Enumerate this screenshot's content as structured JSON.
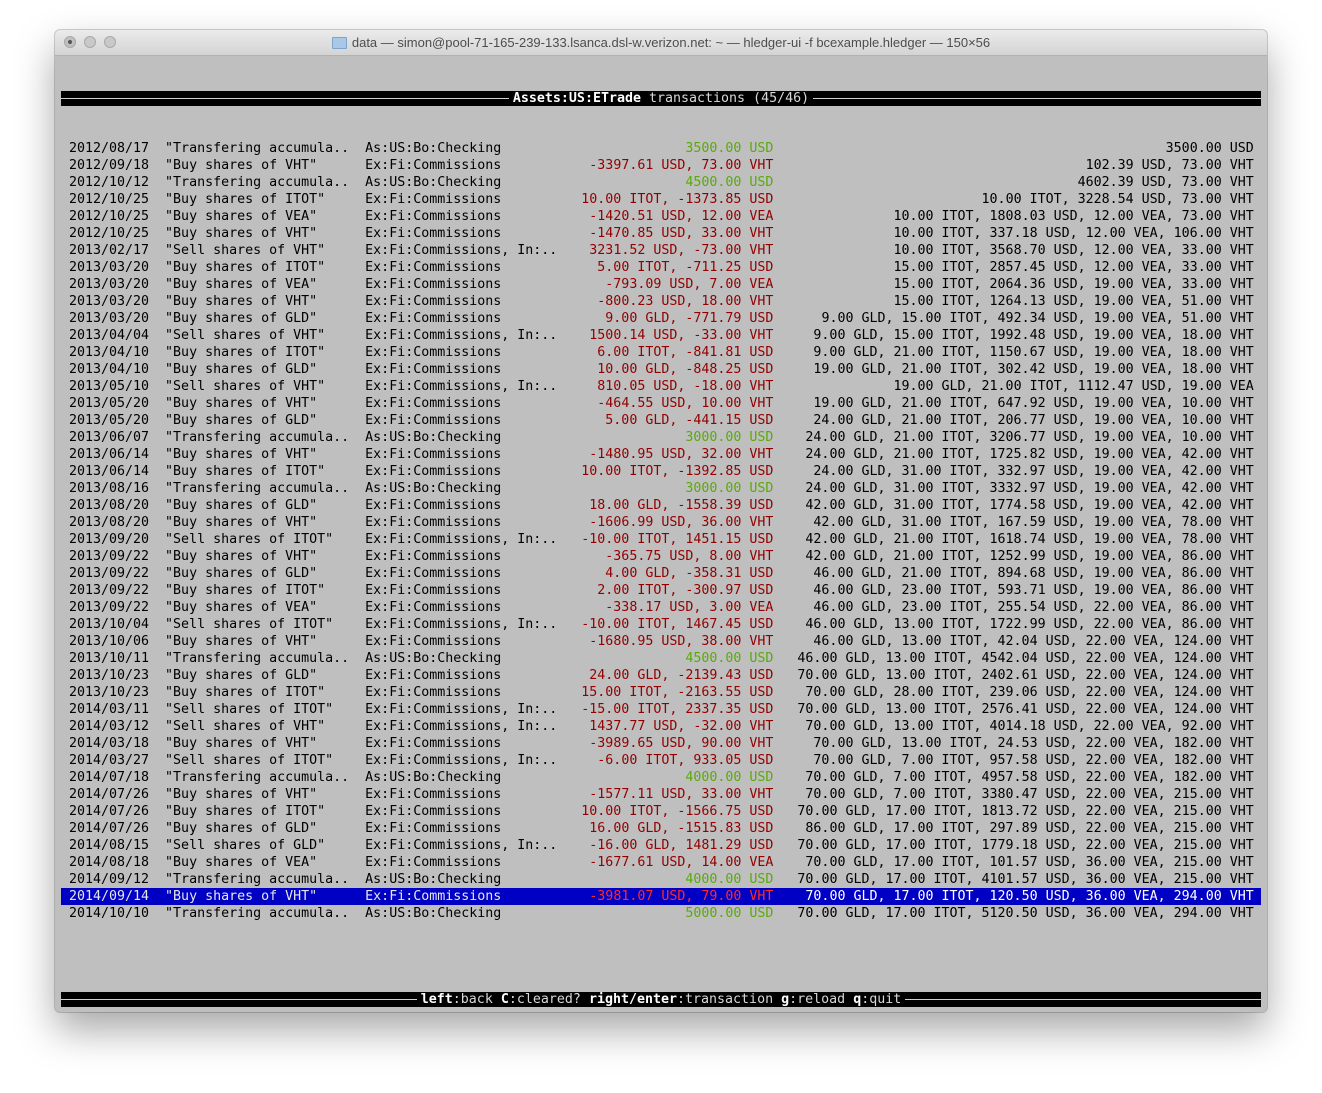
{
  "window": {
    "title": "data — simon@pool-71-165-239-133.lsanca.dsl-w.verizon.net: ~ — hledger-ui -f bcexample.hledger — 150×56",
    "icon": "folder-icon"
  },
  "header": {
    "account": "Assets:US:ETrade",
    "suffix": " transactions (45/46)"
  },
  "colors": {
    "positive": "#5aaa0a",
    "negative": "#920000",
    "selection": "#0000c4",
    "background": "#bfbfbf"
  },
  "selected_index": 44,
  "rows": [
    {
      "date": "2012/08/17",
      "desc": "\"Transfering accumula..",
      "account": "As:US:Bo:Checking",
      "amount": "3500.00 USD",
      "positive": true,
      "balance": "3500.00 USD"
    },
    {
      "date": "2012/09/18",
      "desc": "\"Buy shares of VHT\"",
      "account": "Ex:Fi:Commissions",
      "amount": "-3397.61 USD, 73.00 VHT",
      "positive": false,
      "balance": "102.39 USD, 73.00 VHT"
    },
    {
      "date": "2012/10/12",
      "desc": "\"Transfering accumula..",
      "account": "As:US:Bo:Checking",
      "amount": "4500.00 USD",
      "positive": true,
      "balance": "4602.39 USD, 73.00 VHT"
    },
    {
      "date": "2012/10/25",
      "desc": "\"Buy shares of ITOT\"",
      "account": "Ex:Fi:Commissions",
      "amount": "10.00 ITOT, -1373.85 USD",
      "positive": false,
      "balance": "10.00 ITOT, 3228.54 USD, 73.00 VHT"
    },
    {
      "date": "2012/10/25",
      "desc": "\"Buy shares of VEA\"",
      "account": "Ex:Fi:Commissions",
      "amount": "-1420.51 USD, 12.00 VEA",
      "positive": false,
      "balance": "10.00 ITOT, 1808.03 USD, 12.00 VEA, 73.00 VHT"
    },
    {
      "date": "2012/10/25",
      "desc": "\"Buy shares of VHT\"",
      "account": "Ex:Fi:Commissions",
      "amount": "-1470.85 USD, 33.00 VHT",
      "positive": false,
      "balance": "10.00 ITOT, 337.18 USD, 12.00 VEA, 106.00 VHT"
    },
    {
      "date": "2013/02/17",
      "desc": "\"Sell shares of VHT\"",
      "account": "Ex:Fi:Commissions, In:..",
      "amount": "3231.52 USD, -73.00 VHT",
      "positive": false,
      "balance": "10.00 ITOT, 3568.70 USD, 12.00 VEA, 33.00 VHT"
    },
    {
      "date": "2013/03/20",
      "desc": "\"Buy shares of ITOT\"",
      "account": "Ex:Fi:Commissions",
      "amount": "5.00 ITOT, -711.25 USD",
      "positive": false,
      "balance": "15.00 ITOT, 2857.45 USD, 12.00 VEA, 33.00 VHT"
    },
    {
      "date": "2013/03/20",
      "desc": "\"Buy shares of VEA\"",
      "account": "Ex:Fi:Commissions",
      "amount": "-793.09 USD, 7.00 VEA",
      "positive": false,
      "balance": "15.00 ITOT, 2064.36 USD, 19.00 VEA, 33.00 VHT"
    },
    {
      "date": "2013/03/20",
      "desc": "\"Buy shares of VHT\"",
      "account": "Ex:Fi:Commissions",
      "amount": "-800.23 USD, 18.00 VHT",
      "positive": false,
      "balance": "15.00 ITOT, 1264.13 USD, 19.00 VEA, 51.00 VHT"
    },
    {
      "date": "2013/03/20",
      "desc": "\"Buy shares of GLD\"",
      "account": "Ex:Fi:Commissions",
      "amount": "9.00 GLD, -771.79 USD",
      "positive": false,
      "balance": "9.00 GLD, 15.00 ITOT, 492.34 USD, 19.00 VEA, 51.00 VHT"
    },
    {
      "date": "2013/04/04",
      "desc": "\"Sell shares of VHT\"",
      "account": "Ex:Fi:Commissions, In:..",
      "amount": "1500.14 USD, -33.00 VHT",
      "positive": false,
      "balance": "9.00 GLD, 15.00 ITOT, 1992.48 USD, 19.00 VEA, 18.00 VHT"
    },
    {
      "date": "2013/04/10",
      "desc": "\"Buy shares of ITOT\"",
      "account": "Ex:Fi:Commissions",
      "amount": "6.00 ITOT, -841.81 USD",
      "positive": false,
      "balance": "9.00 GLD, 21.00 ITOT, 1150.67 USD, 19.00 VEA, 18.00 VHT"
    },
    {
      "date": "2013/04/10",
      "desc": "\"Buy shares of GLD\"",
      "account": "Ex:Fi:Commissions",
      "amount": "10.00 GLD, -848.25 USD",
      "positive": false,
      "balance": "19.00 GLD, 21.00 ITOT, 302.42 USD, 19.00 VEA, 18.00 VHT"
    },
    {
      "date": "2013/05/10",
      "desc": "\"Sell shares of VHT\"",
      "account": "Ex:Fi:Commissions, In:..",
      "amount": "810.05 USD, -18.00 VHT",
      "positive": false,
      "balance": "19.00 GLD, 21.00 ITOT, 1112.47 USD, 19.00 VEA"
    },
    {
      "date": "2013/05/20",
      "desc": "\"Buy shares of VHT\"",
      "account": "Ex:Fi:Commissions",
      "amount": "-464.55 USD, 10.00 VHT",
      "positive": false,
      "balance": "19.00 GLD, 21.00 ITOT, 647.92 USD, 19.00 VEA, 10.00 VHT"
    },
    {
      "date": "2013/05/20",
      "desc": "\"Buy shares of GLD\"",
      "account": "Ex:Fi:Commissions",
      "amount": "5.00 GLD, -441.15 USD",
      "positive": false,
      "balance": "24.00 GLD, 21.00 ITOT, 206.77 USD, 19.00 VEA, 10.00 VHT"
    },
    {
      "date": "2013/06/07",
      "desc": "\"Transfering accumula..",
      "account": "As:US:Bo:Checking",
      "amount": "3000.00 USD",
      "positive": true,
      "balance": "24.00 GLD, 21.00 ITOT, 3206.77 USD, 19.00 VEA, 10.00 VHT"
    },
    {
      "date": "2013/06/14",
      "desc": "\"Buy shares of VHT\"",
      "account": "Ex:Fi:Commissions",
      "amount": "-1480.95 USD, 32.00 VHT",
      "positive": false,
      "balance": "24.00 GLD, 21.00 ITOT, 1725.82 USD, 19.00 VEA, 42.00 VHT"
    },
    {
      "date": "2013/06/14",
      "desc": "\"Buy shares of ITOT\"",
      "account": "Ex:Fi:Commissions",
      "amount": "10.00 ITOT, -1392.85 USD",
      "positive": false,
      "balance": "24.00 GLD, 31.00 ITOT, 332.97 USD, 19.00 VEA, 42.00 VHT"
    },
    {
      "date": "2013/08/16",
      "desc": "\"Transfering accumula..",
      "account": "As:US:Bo:Checking",
      "amount": "3000.00 USD",
      "positive": true,
      "balance": "24.00 GLD, 31.00 ITOT, 3332.97 USD, 19.00 VEA, 42.00 VHT"
    },
    {
      "date": "2013/08/20",
      "desc": "\"Buy shares of GLD\"",
      "account": "Ex:Fi:Commissions",
      "amount": "18.00 GLD, -1558.39 USD",
      "positive": false,
      "balance": "42.00 GLD, 31.00 ITOT, 1774.58 USD, 19.00 VEA, 42.00 VHT"
    },
    {
      "date": "2013/08/20",
      "desc": "\"Buy shares of VHT\"",
      "account": "Ex:Fi:Commissions",
      "amount": "-1606.99 USD, 36.00 VHT",
      "positive": false,
      "balance": "42.00 GLD, 31.00 ITOT, 167.59 USD, 19.00 VEA, 78.00 VHT"
    },
    {
      "date": "2013/09/20",
      "desc": "\"Sell shares of ITOT\"",
      "account": "Ex:Fi:Commissions, In:..",
      "amount": "-10.00 ITOT, 1451.15 USD",
      "positive": false,
      "balance": "42.00 GLD, 21.00 ITOT, 1618.74 USD, 19.00 VEA, 78.00 VHT"
    },
    {
      "date": "2013/09/22",
      "desc": "\"Buy shares of VHT\"",
      "account": "Ex:Fi:Commissions",
      "amount": "-365.75 USD, 8.00 VHT",
      "positive": false,
      "balance": "42.00 GLD, 21.00 ITOT, 1252.99 USD, 19.00 VEA, 86.00 VHT"
    },
    {
      "date": "2013/09/22",
      "desc": "\"Buy shares of GLD\"",
      "account": "Ex:Fi:Commissions",
      "amount": "4.00 GLD, -358.31 USD",
      "positive": false,
      "balance": "46.00 GLD, 21.00 ITOT, 894.68 USD, 19.00 VEA, 86.00 VHT"
    },
    {
      "date": "2013/09/22",
      "desc": "\"Buy shares of ITOT\"",
      "account": "Ex:Fi:Commissions",
      "amount": "2.00 ITOT, -300.97 USD",
      "positive": false,
      "balance": "46.00 GLD, 23.00 ITOT, 593.71 USD, 19.00 VEA, 86.00 VHT"
    },
    {
      "date": "2013/09/22",
      "desc": "\"Buy shares of VEA\"",
      "account": "Ex:Fi:Commissions",
      "amount": "-338.17 USD, 3.00 VEA",
      "positive": false,
      "balance": "46.00 GLD, 23.00 ITOT, 255.54 USD, 22.00 VEA, 86.00 VHT"
    },
    {
      "date": "2013/10/04",
      "desc": "\"Sell shares of ITOT\"",
      "account": "Ex:Fi:Commissions, In:..",
      "amount": "-10.00 ITOT, 1467.45 USD",
      "positive": false,
      "balance": "46.00 GLD, 13.00 ITOT, 1722.99 USD, 22.00 VEA, 86.00 VHT"
    },
    {
      "date": "2013/10/06",
      "desc": "\"Buy shares of VHT\"",
      "account": "Ex:Fi:Commissions",
      "amount": "-1680.95 USD, 38.00 VHT",
      "positive": false,
      "balance": "46.00 GLD, 13.00 ITOT, 42.04 USD, 22.00 VEA, 124.00 VHT"
    },
    {
      "date": "2013/10/11",
      "desc": "\"Transfering accumula..",
      "account": "As:US:Bo:Checking",
      "amount": "4500.00 USD",
      "positive": true,
      "balance": "46.00 GLD, 13.00 ITOT, 4542.04 USD, 22.00 VEA, 124.00 VHT"
    },
    {
      "date": "2013/10/23",
      "desc": "\"Buy shares of GLD\"",
      "account": "Ex:Fi:Commissions",
      "amount": "24.00 GLD, -2139.43 USD",
      "positive": false,
      "balance": "70.00 GLD, 13.00 ITOT, 2402.61 USD, 22.00 VEA, 124.00 VHT"
    },
    {
      "date": "2013/10/23",
      "desc": "\"Buy shares of ITOT\"",
      "account": "Ex:Fi:Commissions",
      "amount": "15.00 ITOT, -2163.55 USD",
      "positive": false,
      "balance": "70.00 GLD, 28.00 ITOT, 239.06 USD, 22.00 VEA, 124.00 VHT"
    },
    {
      "date": "2014/03/11",
      "desc": "\"Sell shares of ITOT\"",
      "account": "Ex:Fi:Commissions, In:..",
      "amount": "-15.00 ITOT, 2337.35 USD",
      "positive": false,
      "balance": "70.00 GLD, 13.00 ITOT, 2576.41 USD, 22.00 VEA, 124.00 VHT"
    },
    {
      "date": "2014/03/12",
      "desc": "\"Sell shares of VHT\"",
      "account": "Ex:Fi:Commissions, In:..",
      "amount": "1437.77 USD, -32.00 VHT",
      "positive": false,
      "balance": "70.00 GLD, 13.00 ITOT, 4014.18 USD, 22.00 VEA, 92.00 VHT"
    },
    {
      "date": "2014/03/18",
      "desc": "\"Buy shares of VHT\"",
      "account": "Ex:Fi:Commissions",
      "amount": "-3989.65 USD, 90.00 VHT",
      "positive": false,
      "balance": "70.00 GLD, 13.00 ITOT, 24.53 USD, 22.00 VEA, 182.00 VHT"
    },
    {
      "date": "2014/03/27",
      "desc": "\"Sell shares of ITOT\"",
      "account": "Ex:Fi:Commissions, In:..",
      "amount": "-6.00 ITOT, 933.05 USD",
      "positive": false,
      "balance": "70.00 GLD, 7.00 ITOT, 957.58 USD, 22.00 VEA, 182.00 VHT"
    },
    {
      "date": "2014/07/18",
      "desc": "\"Transfering accumula..",
      "account": "As:US:Bo:Checking",
      "amount": "4000.00 USD",
      "positive": true,
      "balance": "70.00 GLD, 7.00 ITOT, 4957.58 USD, 22.00 VEA, 182.00 VHT"
    },
    {
      "date": "2014/07/26",
      "desc": "\"Buy shares of VHT\"",
      "account": "Ex:Fi:Commissions",
      "amount": "-1577.11 USD, 33.00 VHT",
      "positive": false,
      "balance": "70.00 GLD, 7.00 ITOT, 3380.47 USD, 22.00 VEA, 215.00 VHT"
    },
    {
      "date": "2014/07/26",
      "desc": "\"Buy shares of ITOT\"",
      "account": "Ex:Fi:Commissions",
      "amount": "10.00 ITOT, -1566.75 USD",
      "positive": false,
      "balance": "70.00 GLD, 17.00 ITOT, 1813.72 USD, 22.00 VEA, 215.00 VHT"
    },
    {
      "date": "2014/07/26",
      "desc": "\"Buy shares of GLD\"",
      "account": "Ex:Fi:Commissions",
      "amount": "16.00 GLD, -1515.83 USD",
      "positive": false,
      "balance": "86.00 GLD, 17.00 ITOT, 297.89 USD, 22.00 VEA, 215.00 VHT"
    },
    {
      "date": "2014/08/15",
      "desc": "\"Sell shares of GLD\"",
      "account": "Ex:Fi:Commissions, In:..",
      "amount": "-16.00 GLD, 1481.29 USD",
      "positive": false,
      "balance": "70.00 GLD, 17.00 ITOT, 1779.18 USD, 22.00 VEA, 215.00 VHT"
    },
    {
      "date": "2014/08/18",
      "desc": "\"Buy shares of VEA\"",
      "account": "Ex:Fi:Commissions",
      "amount": "-1677.61 USD, 14.00 VEA",
      "positive": false,
      "balance": "70.00 GLD, 17.00 ITOT, 101.57 USD, 36.00 VEA, 215.00 VHT"
    },
    {
      "date": "2014/09/12",
      "desc": "\"Transfering accumula..",
      "account": "As:US:Bo:Checking",
      "amount": "4000.00 USD",
      "positive": true,
      "balance": "70.00 GLD, 17.00 ITOT, 4101.57 USD, 36.00 VEA, 215.00 VHT"
    },
    {
      "date": "2014/09/14",
      "desc": "\"Buy shares of VHT\"",
      "account": "Ex:Fi:Commissions",
      "amount": "-3981.07 USD, 79.00 VHT",
      "positive": false,
      "balance": "70.00 GLD, 17.00 ITOT, 120.50 USD, 36.00 VEA, 294.00 VHT"
    },
    {
      "date": "2014/10/10",
      "desc": "\"Transfering accumula..",
      "account": "As:US:Bo:Checking",
      "amount": "5000.00 USD",
      "positive": true,
      "balance": "70.00 GLD, 17.00 ITOT, 5120.50 USD, 36.00 VEA, 294.00 VHT"
    }
  ],
  "footer": {
    "keys": [
      {
        "key": "left",
        "action": "back"
      },
      {
        "key": "C",
        "action": "cleared?"
      },
      {
        "key": "right/enter",
        "action": "transaction"
      },
      {
        "key": "g",
        "action": "reload"
      },
      {
        "key": "q",
        "action": "quit"
      }
    ]
  }
}
